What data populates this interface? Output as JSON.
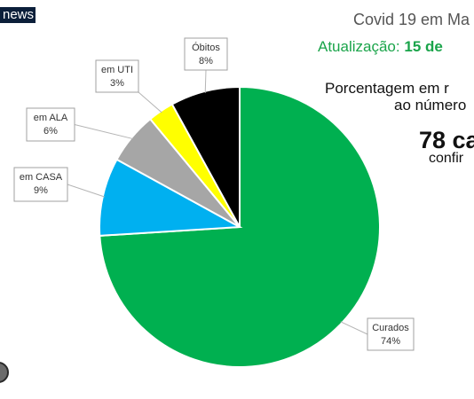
{
  "brand": {
    "logo_text": "news"
  },
  "header": {
    "title": "Covid 19 em Ma",
    "update_label": "Atualização:",
    "update_date": "15 de",
    "description_line1": "Porcentagem em r",
    "description_line2": "ao número",
    "cases": "78 ca",
    "confirmed": "confir"
  },
  "colors": {
    "curados": "#00b050",
    "casa": "#00b0f0",
    "ala": "#a6a6a6",
    "uti": "#ffff00",
    "obitos": "#000000",
    "update_text": "#1aa44a"
  },
  "chart_data": {
    "type": "pie",
    "categories": [
      "Curados",
      "em CASA",
      "em ALA",
      "em UTI",
      "Óbitos"
    ],
    "values": [
      74,
      9,
      6,
      3,
      8
    ],
    "labels": [
      "74%",
      "9%",
      "6%",
      "3%",
      "8%"
    ],
    "start": "12 o'clock",
    "direction": "clockwise",
    "data_labels": "callouts"
  }
}
